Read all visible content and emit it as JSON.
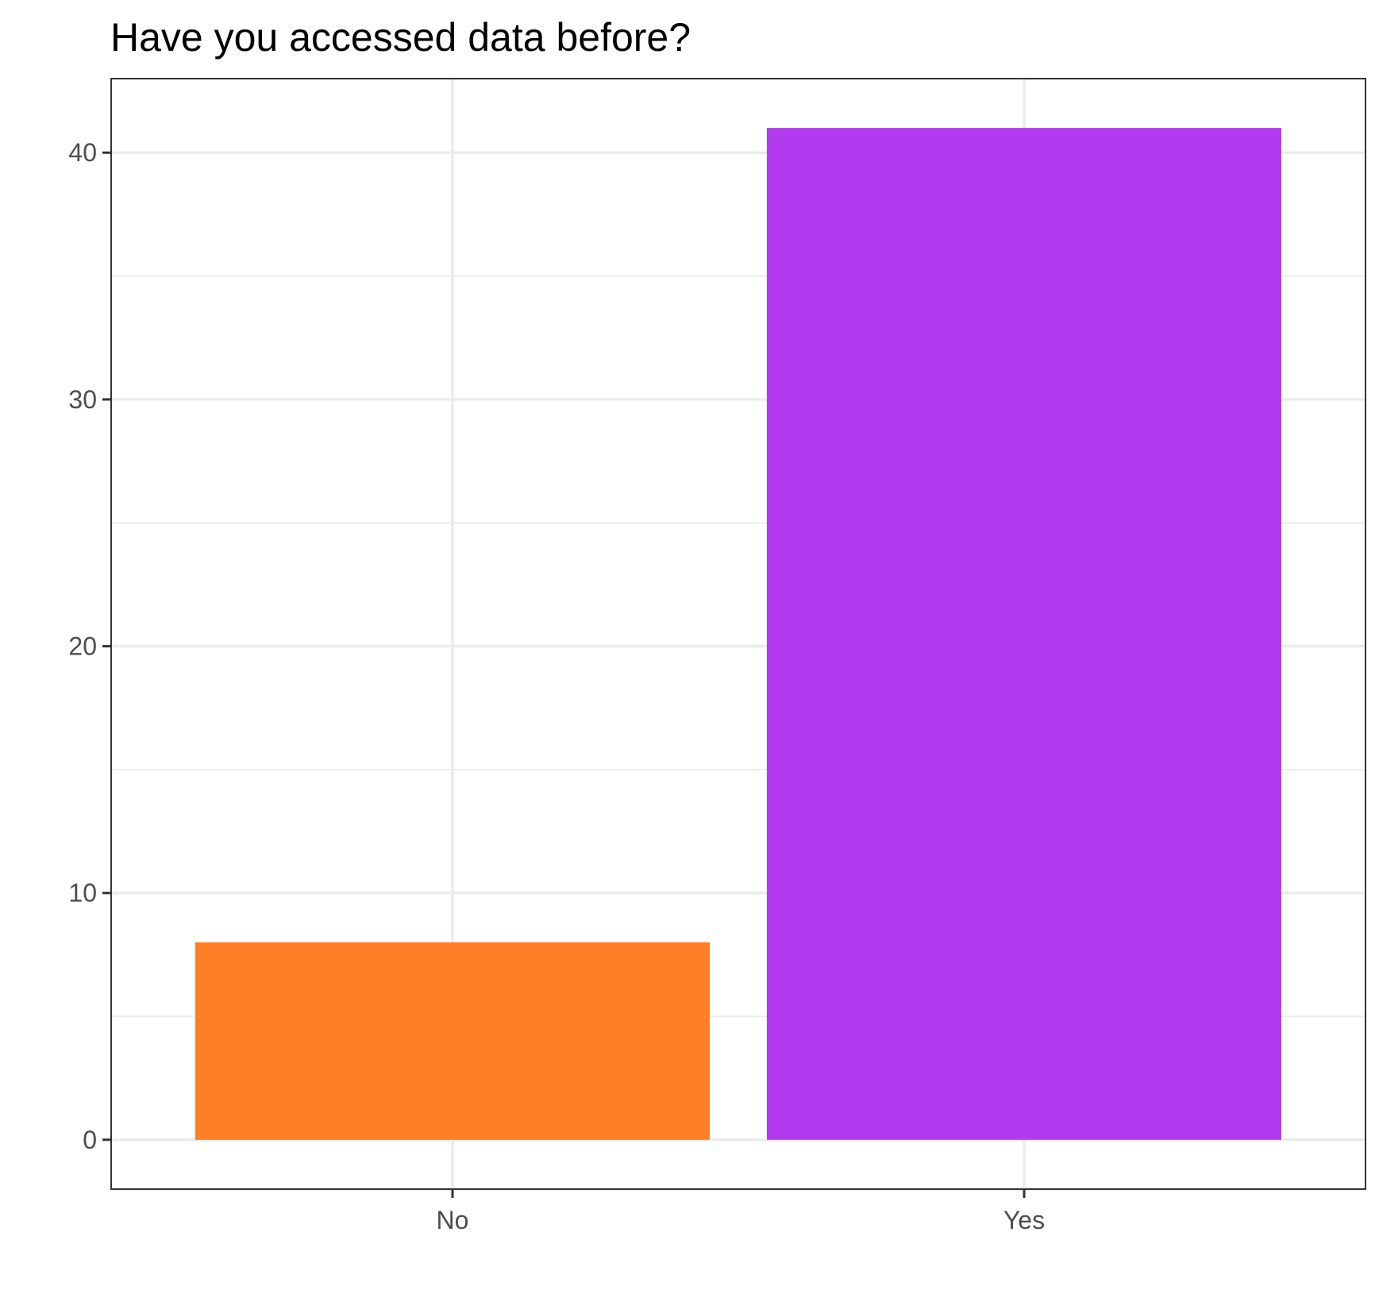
{
  "chart_data": {
    "type": "bar",
    "title": "Have you accessed data before?",
    "xlabel": "",
    "ylabel": "",
    "categories": [
      "No",
      "Yes"
    ],
    "values": [
      8,
      41
    ],
    "colors": [
      "#FF7F27",
      "#B23AEE"
    ],
    "ylim": [
      -2,
      43
    ],
    "y_ticks": [
      0,
      10,
      20,
      30,
      40
    ],
    "y_minor_ticks": [
      5,
      15,
      25,
      35
    ],
    "grid": true,
    "legend": "none"
  }
}
